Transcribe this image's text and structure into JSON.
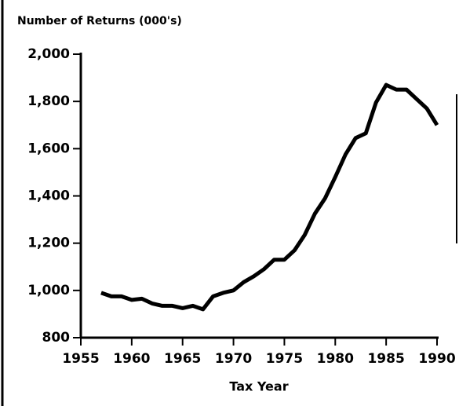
{
  "chart_data": {
    "type": "line",
    "title": "Number of Returns (000's)",
    "x_label": "Tax Year",
    "x": [
      1957,
      1958,
      1959,
      1960,
      1961,
      1962,
      1963,
      1964,
      1965,
      1966,
      1967,
      1968,
      1969,
      1970,
      1971,
      1972,
      1973,
      1974,
      1975,
      1976,
      1977,
      1978,
      1979,
      1980,
      1981,
      1982,
      1983,
      1984,
      1985,
      1986,
      1987,
      1988,
      1989,
      1990
    ],
    "series": [
      {
        "name": "Number of Returns",
        "color": "#000000",
        "values": [
          990,
          975,
          975,
          960,
          965,
          945,
          935,
          935,
          925,
          935,
          920,
          975,
          990,
          1000,
          1035,
          1060,
          1090,
          1130,
          1130,
          1170,
          1235,
          1325,
          1390,
          1480,
          1575,
          1645,
          1665,
          1795,
          1870,
          1850,
          1850,
          1810,
          1770,
          1700
        ]
      }
    ],
    "xlim": [
      1955,
      1990
    ],
    "xticks": [
      1955,
      1960,
      1965,
      1970,
      1975,
      1980,
      1985,
      1990
    ],
    "ylim": [
      800,
      2000
    ],
    "yticks": [
      800,
      {
        "value": 1000,
        "label": "1,000"
      },
      {
        "value": 1200,
        "label": "1,200"
      },
      {
        "value": 1400,
        "label": "1,400"
      },
      {
        "value": 1600,
        "label": "1,600"
      },
      {
        "value": 1800,
        "label": "1,800"
      },
      {
        "value": 2000,
        "label": "2,000"
      }
    ],
    "grid": false
  }
}
